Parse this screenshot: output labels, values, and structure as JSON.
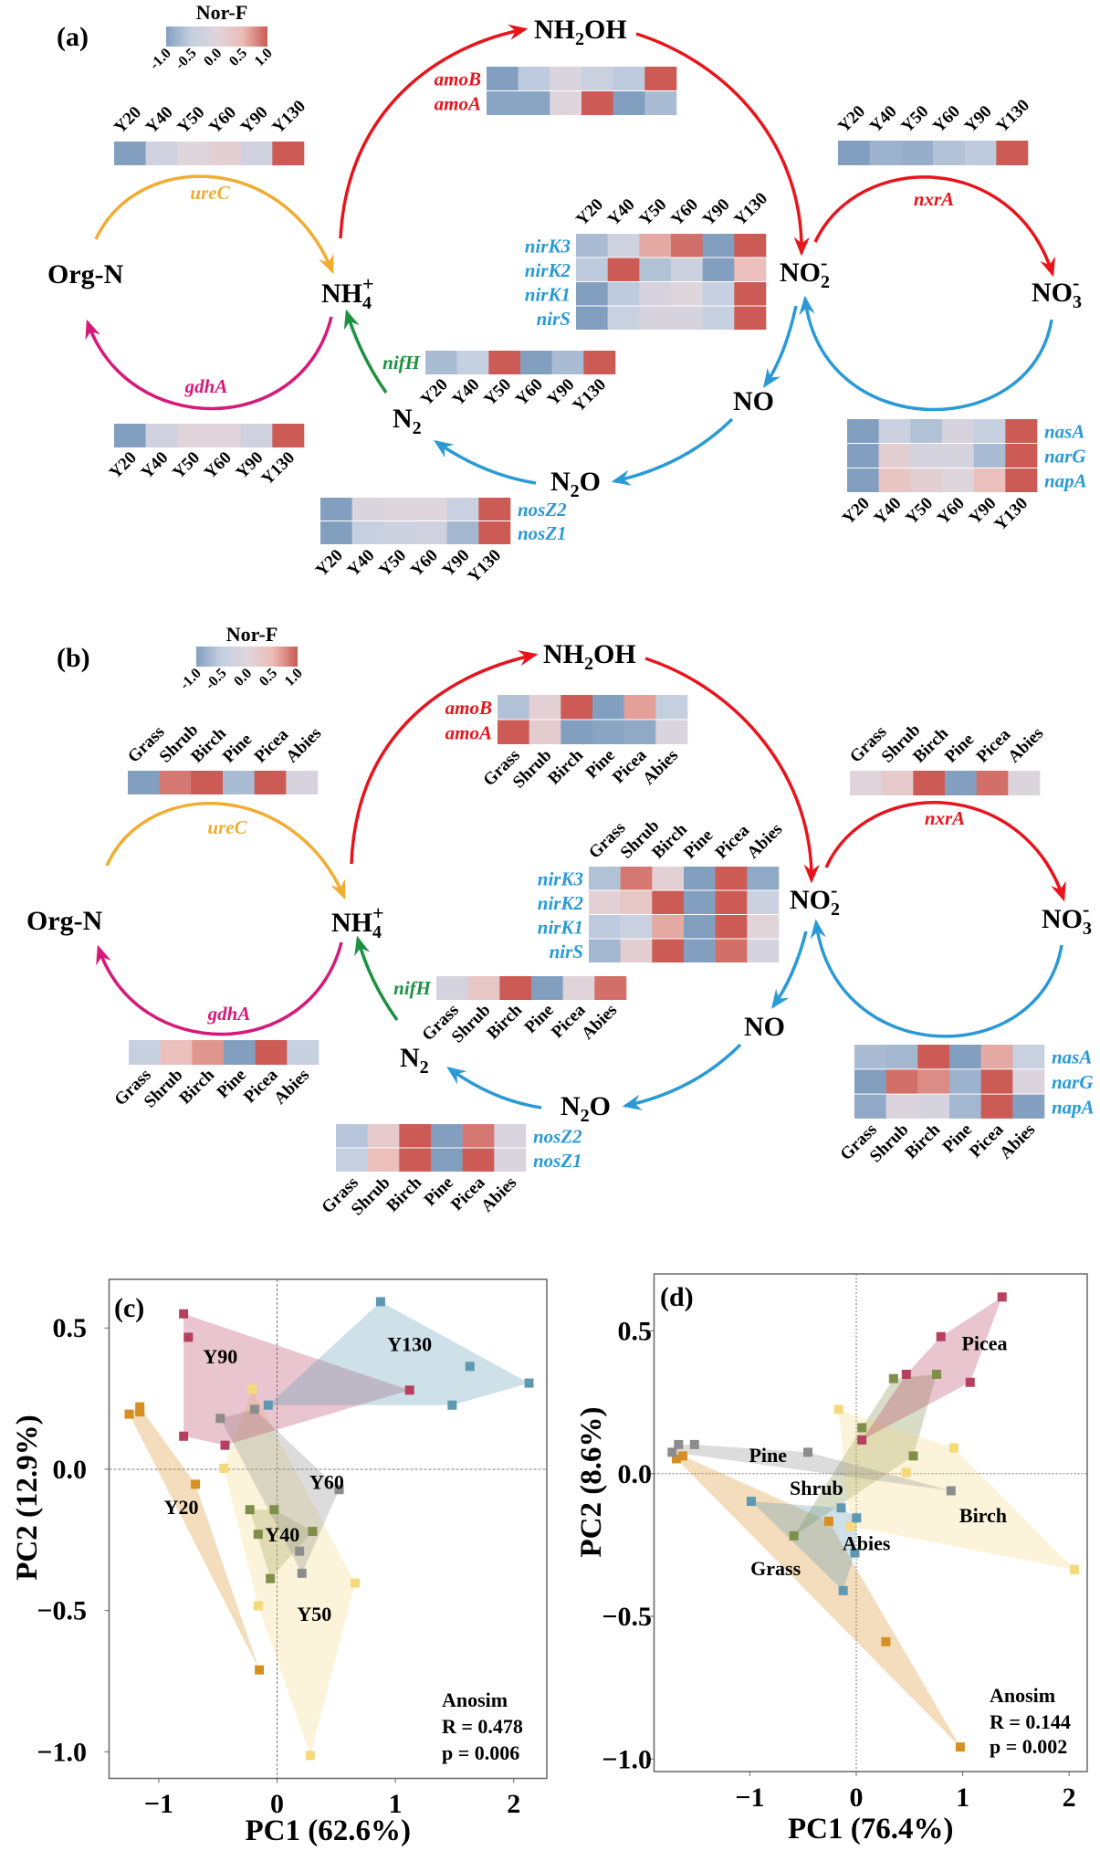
{
  "colors": {
    "red": "#e8141c",
    "blue": "#2a9ad6",
    "orange": "#f0ad32",
    "magenta": "#d6197a",
    "green": "#1e9140"
  },
  "panel_a": {
    "label": "(a)",
    "legend": {
      "title": "Nor-F",
      "ticks": [
        "-1.0",
        "-0.5",
        "0.0",
        "0.5",
        "1.0"
      ],
      "range": [
        -1,
        1
      ]
    },
    "columns": [
      "Y20",
      "Y40",
      "Y50",
      "Y60",
      "Y90",
      "Y130"
    ],
    "nodes": {
      "org_n": [
        {
          "t": "Org-N"
        }
      ],
      "nh4": [
        {
          "t": "NH"
        },
        {
          "t": "4",
          "role": "sub"
        },
        {
          "t": "+",
          "role": "sup"
        }
      ],
      "nh2oh": [
        {
          "t": "NH"
        },
        {
          "t": "2",
          "role": "sub"
        },
        {
          "t": "OH"
        }
      ],
      "no2": [
        {
          "t": "NO"
        },
        {
          "t": "2",
          "role": "sub"
        },
        {
          "t": "-",
          "role": "sup"
        }
      ],
      "no3": [
        {
          "t": "NO"
        },
        {
          "t": "3",
          "role": "sub"
        },
        {
          "t": "-",
          "role": "sup"
        }
      ],
      "no": [
        {
          "t": "NO"
        }
      ],
      "n2o": [
        {
          "t": "N"
        },
        {
          "t": "2",
          "role": "sub"
        },
        {
          "t": "O"
        }
      ],
      "n2": [
        {
          "t": "N"
        },
        {
          "t": "2",
          "role": "sub"
        }
      ]
    },
    "heatmaps": {
      "ureC": {
        "color": "#f0ad32",
        "genes": [
          {
            "name": "ureC",
            "values": [
              -1,
              -0.3,
              0,
              0.15,
              -0.3,
              1
            ]
          }
        ]
      },
      "gdhA": {
        "color": "#d6197a",
        "genes": [
          {
            "name": "gdhA",
            "values": [
              -1,
              -0.3,
              0.05,
              0.05,
              -0.3,
              1
            ]
          }
        ]
      },
      "amo": {
        "color": "#e8141c",
        "genes": [
          {
            "name": "amoB",
            "values": [
              -1,
              -0.55,
              -0.1,
              -0.4,
              -0.55,
              1
            ]
          },
          {
            "name": "amoA",
            "values": [
              -0.95,
              -0.95,
              0,
              1,
              -1,
              -0.7
            ]
          }
        ]
      },
      "nxrA": {
        "color": "#e8141c",
        "genes": [
          {
            "name": "nxrA",
            "values": [
              -1,
              -0.8,
              -0.85,
              -0.65,
              -0.55,
              1
            ]
          }
        ]
      },
      "nir": {
        "color": "#2a9ad6",
        "genes": [
          {
            "name": "nirK3",
            "values": [
              -0.7,
              -0.3,
              0.6,
              0.9,
              -1,
              1
            ]
          },
          {
            "name": "nirK2",
            "values": [
              -0.55,
              1,
              -0.65,
              -0.35,
              -1,
              0.45
            ]
          },
          {
            "name": "nirK1",
            "values": [
              -1,
              -0.55,
              -0.15,
              0,
              -0.45,
              1
            ]
          },
          {
            "name": "nirS",
            "values": [
              -1,
              -0.4,
              -0.15,
              -0.15,
              -0.45,
              1
            ]
          }
        ]
      },
      "nifH": {
        "color": "#1e9140",
        "genes": [
          {
            "name": "nifH",
            "values": [
              -0.7,
              -0.5,
              1,
              -1,
              -0.7,
              1
            ]
          }
        ]
      },
      "nos": {
        "color": "#2a9ad6",
        "genes": [
          {
            "name": "nosZ2",
            "values": [
              -1,
              -0.1,
              0,
              0,
              -0.4,
              1
            ]
          },
          {
            "name": "nosZ1",
            "values": [
              -1,
              -0.45,
              -0.35,
              -0.3,
              -0.75,
              1
            ]
          }
        ]
      },
      "nas": {
        "color": "#2a9ad6",
        "genes": [
          {
            "name": "nasA",
            "values": [
              -1,
              -0.35,
              -0.65,
              -0.15,
              -0.45,
              1
            ]
          },
          {
            "name": "narG",
            "values": [
              -1,
              0.15,
              -0.2,
              -0.2,
              -0.7,
              1
            ]
          },
          {
            "name": "napA",
            "values": [
              -1,
              0.35,
              0.15,
              0,
              0.45,
              1
            ]
          }
        ]
      }
    }
  },
  "panel_b": {
    "label": "(b)",
    "legend": {
      "title": "Nor-F",
      "ticks": [
        "-1.0",
        "-0.5",
        "0.0",
        "0.5",
        "1.0"
      ],
      "range": [
        -1,
        1
      ]
    },
    "columns": [
      "Grass",
      "Shrub",
      "Birch",
      "Pine",
      "Picea",
      "Abies"
    ],
    "nodes": {
      "org_n": [
        {
          "t": "Org-N"
        }
      ],
      "nh4": [
        {
          "t": "NH"
        },
        {
          "t": "4",
          "role": "sub"
        },
        {
          "t": "+",
          "role": "sup"
        }
      ],
      "nh2oh": [
        {
          "t": "NH"
        },
        {
          "t": "2",
          "role": "sub"
        },
        {
          "t": "OH"
        }
      ],
      "no2": [
        {
          "t": "NO"
        },
        {
          "t": "2",
          "role": "sub"
        },
        {
          "t": "-",
          "role": "sup"
        }
      ],
      "no3": [
        {
          "t": "NO"
        },
        {
          "t": "3",
          "role": "sub"
        },
        {
          "t": "-",
          "role": "sup"
        }
      ],
      "no": [
        {
          "t": "NO"
        }
      ],
      "n2o": [
        {
          "t": "N"
        },
        {
          "t": "2",
          "role": "sub"
        },
        {
          "t": "O"
        }
      ],
      "n2": [
        {
          "t": "N"
        },
        {
          "t": "2",
          "role": "sub"
        }
      ]
    },
    "heatmaps": {
      "ureC": {
        "color": "#f0ad32",
        "genes": [
          {
            "name": "ureC",
            "values": [
              -1,
              0.85,
              1,
              -0.7,
              1,
              -0.15
            ]
          }
        ]
      },
      "gdhA": {
        "color": "#d6197a",
        "genes": [
          {
            "name": "gdhA",
            "values": [
              -0.45,
              0.45,
              0.7,
              -1,
              1,
              -0.45
            ]
          }
        ]
      },
      "amo": {
        "color": "#e8141c",
        "genes": [
          {
            "name": "amoB",
            "values": [
              -0.65,
              0.1,
              1,
              -1,
              0.65,
              -0.5
            ]
          },
          {
            "name": "amoA",
            "values": [
              1,
              0.2,
              -1,
              -0.95,
              -0.9,
              -0.1
            ]
          }
        ]
      },
      "nxrA": {
        "color": "#e8141c",
        "genes": [
          {
            "name": "nxrA",
            "values": [
              0.05,
              0.25,
              1,
              -1,
              0.9,
              -0.05
            ]
          }
        ]
      },
      "nir": {
        "color": "#2a9ad6",
        "genes": [
          {
            "name": "nirK3",
            "values": [
              -0.65,
              0.85,
              0.1,
              -1,
              1,
              -0.9
            ]
          },
          {
            "name": "nirK2",
            "values": [
              0.1,
              0.3,
              1,
              -1,
              1,
              -0.35
            ]
          },
          {
            "name": "nirK1",
            "values": [
              -0.55,
              -0.4,
              0.6,
              -1,
              1,
              0.05
            ]
          },
          {
            "name": "nirS",
            "values": [
              -0.75,
              0.15,
              1,
              -1,
              0.9,
              -0.2
            ]
          }
        ]
      },
      "nifH": {
        "color": "#1e9140",
        "genes": [
          {
            "name": "nifH",
            "values": [
              -0.2,
              0.3,
              1,
              -1,
              0.05,
              0.9
            ]
          }
        ]
      },
      "nos": {
        "color": "#2a9ad6",
        "genes": [
          {
            "name": "nosZ2",
            "values": [
              -0.6,
              0.25,
              1,
              -1,
              0.85,
              -0.1
            ]
          },
          {
            "name": "nosZ1",
            "values": [
              -0.45,
              0.45,
              1,
              -1,
              1,
              -0.1
            ]
          }
        ]
      },
      "nas": {
        "color": "#2a9ad6",
        "genes": [
          {
            "name": "nasA",
            "values": [
              -0.7,
              -0.75,
              1,
              -1,
              0.6,
              -0.4
            ]
          },
          {
            "name": "narG",
            "values": [
              -1,
              0.9,
              0.75,
              -0.8,
              1,
              -0.05
            ]
          },
          {
            "name": "napA",
            "values": [
              -0.9,
              -0.05,
              -0.2,
              -0.75,
              1,
              -1
            ]
          }
        ]
      }
    }
  },
  "chart_data": [
    {
      "type": "scatter",
      "panel_label": "(c)",
      "title": "",
      "xlabel": "PC1 (62.6%)",
      "ylabel": "PC2 (12.9%)",
      "xlim": [
        -1.42,
        2.28
      ],
      "ylim": [
        -1.094,
        0.672
      ],
      "xticks": [
        -1,
        0,
        1,
        2
      ],
      "xtick_labels": [
        "−1",
        "0",
        "1",
        "2"
      ],
      "yticks": [
        0.5,
        0,
        -0.5,
        -1
      ],
      "ytick_labels": [
        "0.5",
        "0.0",
        "−0.5",
        "−1.0"
      ],
      "reference_lines": {
        "x": 0,
        "y": 0,
        "style": "dashed"
      },
      "convex_hulls": true,
      "annotation": {
        "title": "Anosim",
        "r": "R = 0.478",
        "p": "p = 0.006"
      },
      "series": [
        {
          "name": "Y20",
          "color": "#d68f22",
          "points": [
            [
              -1.25,
              0.195
            ],
            [
              -1.16,
              0.221
            ],
            [
              -1.16,
              0.203
            ],
            [
              -0.69,
              -0.053
            ],
            [
              -0.15,
              -0.71
            ]
          ]
        },
        {
          "name": "Y40",
          "color": "#7f8f4a",
          "points": [
            [
              -0.23,
              -0.143
            ],
            [
              -0.024,
              -0.143
            ],
            [
              -0.16,
              -0.23
            ],
            [
              0.3,
              -0.22
            ],
            [
              -0.057,
              -0.387
            ]
          ]
        },
        {
          "name": "Y50",
          "color": "#f5d97a",
          "points": [
            [
              -0.21,
              0.283
            ],
            [
              -0.45,
              0.003
            ],
            [
              -0.16,
              -0.483
            ],
            [
              0.66,
              -0.403
            ],
            [
              0.28,
              -1.013
            ]
          ]
        },
        {
          "name": "Y60",
          "color": "#8c8c8c",
          "points": [
            [
              -0.48,
              0.18
            ],
            [
              -0.19,
              0.212
            ],
            [
              0.525,
              -0.072
            ],
            [
              0.19,
              -0.29
            ],
            [
              0.21,
              -0.368
            ]
          ]
        },
        {
          "name": "Y90",
          "color": "#b5405f",
          "points": [
            [
              -0.79,
              0.55
            ],
            [
              -0.75,
              0.467
            ],
            [
              -0.79,
              0.117
            ],
            [
              -0.44,
              0.085
            ],
            [
              1.12,
              0.28
            ]
          ]
        },
        {
          "name": "Y130",
          "color": "#5e98b3",
          "points": [
            [
              0.875,
              0.593
            ],
            [
              1.63,
              0.364
            ],
            [
              2.13,
              0.305
            ],
            [
              1.48,
              0.227
            ],
            [
              -0.075,
              0.227
            ]
          ]
        }
      ]
    },
    {
      "type": "scatter",
      "panel_label": "(d)",
      "title": "",
      "xlabel": "PC1 (76.4%)",
      "ylabel": "PC2 (8.6%)",
      "xlim": [
        -1.9,
        2.17
      ],
      "ylim": [
        -1.044,
        0.7
      ],
      "xticks": [
        -1,
        0,
        1,
        2
      ],
      "xtick_labels": [
        "−1",
        "0",
        "1",
        "2"
      ],
      "yticks": [
        0.5,
        0,
        -0.5,
        -1
      ],
      "ytick_labels": [
        "0.5",
        "0.0",
        "−0.5",
        "−1.0"
      ],
      "reference_lines": {
        "x": 0,
        "y": 0,
        "style": "dotted"
      },
      "convex_hulls": true,
      "annotation": {
        "title": "Anosim",
        "r": "R = 0.144",
        "p": "p = 0.002"
      },
      "series": [
        {
          "name": "Grass",
          "color": "#d68f22",
          "points": [
            [
              -1.69,
              0.052
            ],
            [
              -1.63,
              0.062
            ],
            [
              -0.258,
              -0.167
            ],
            [
              0.278,
              -0.589
            ],
            [
              0.977,
              -0.958
            ]
          ]
        },
        {
          "name": "Shrub",
          "color": "#7f8f4a",
          "points": [
            [
              0.35,
              0.333
            ],
            [
              0.755,
              0.348
            ],
            [
              0.053,
              0.161
            ],
            [
              0.536,
              0.062
            ],
            [
              -0.586,
              -0.218
            ]
          ]
        },
        {
          "name": "Birch",
          "color": "#f5d97a",
          "points": [
            [
              -0.166,
              0.225
            ],
            [
              0.917,
              0.09
            ],
            [
              0.47,
              0.004
            ],
            [
              -0.053,
              -0.185
            ],
            [
              2.05,
              -0.336
            ]
          ]
        },
        {
          "name": "Pine",
          "color": "#8c8c8c",
          "points": [
            [
              -1.73,
              0.075
            ],
            [
              -1.67,
              0.102
            ],
            [
              -1.52,
              0.102
            ],
            [
              -0.454,
              0.075
            ],
            [
              0.89,
              -0.06
            ]
          ]
        },
        {
          "name": "Picea",
          "color": "#b5405f",
          "points": [
            [
              1.37,
              0.619
            ],
            [
              0.795,
              0.48
            ],
            [
              0.47,
              0.348
            ],
            [
              1.07,
              0.32
            ],
            [
              0.053,
              0.118
            ]
          ]
        },
        {
          "name": "Abies",
          "color": "#5e98b3",
          "points": [
            [
              -0.987,
              -0.097
            ],
            [
              -0.142,
              -0.12
            ],
            [
              0.003,
              -0.155
            ],
            [
              -0.013,
              -0.278
            ],
            [
              -0.123,
              -0.41
            ]
          ]
        }
      ]
    }
  ]
}
